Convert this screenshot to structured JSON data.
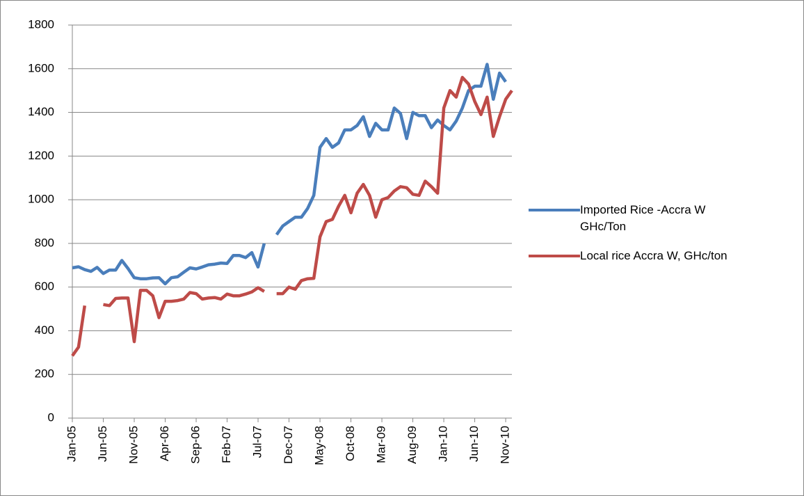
{
  "chart_data": {
    "type": "line",
    "categories": [
      "Jan-05",
      null,
      null,
      null,
      null,
      "Jun-05",
      null,
      null,
      null,
      null,
      "Nov-05",
      null,
      null,
      null,
      null,
      "Apr-06",
      null,
      null,
      null,
      null,
      "Sep-06",
      null,
      null,
      null,
      null,
      "Feb-07",
      null,
      null,
      null,
      null,
      "Jul-07",
      null,
      null,
      null,
      null,
      "Dec-07",
      null,
      null,
      null,
      null,
      "May-08",
      null,
      null,
      null,
      null,
      "Oct-08",
      null,
      null,
      null,
      null,
      "Mar-09",
      null,
      null,
      null,
      null,
      "Aug-09",
      null,
      null,
      null,
      null,
      "Jan-10",
      null,
      null,
      null,
      null,
      "Jun-10",
      null,
      null,
      null,
      null,
      "Nov-10",
      null
    ],
    "series": [
      {
        "name": "Imported Rice -Accra W GHc/Ton",
        "color": "#4a7ebb",
        "values": [
          688,
          693,
          680,
          672,
          690,
          662,
          678,
          678,
          722,
          685,
          643,
          638,
          638,
          642,
          643,
          615,
          643,
          647,
          668,
          688,
          683,
          692,
          702,
          705,
          710,
          708,
          745,
          745,
          735,
          758,
          692,
          800,
          null,
          840,
          880,
          900,
          920,
          920,
          960,
          1020,
          1240,
          1280,
          1240,
          1260,
          1320,
          1320,
          1340,
          1380,
          1290,
          1350,
          1320,
          1320,
          1420,
          1395,
          1280,
          1400,
          1385,
          1385,
          1330,
          1365,
          1340,
          1320,
          1360,
          1420,
          1500,
          1520,
          1520,
          1620,
          1460,
          1580,
          1540,
          null
        ]
      },
      {
        "name": "Local rice Accra W, GHc/ton",
        "color": "#be4b48",
        "values": [
          285,
          325,
          515,
          null,
          null,
          520,
          515,
          548,
          550,
          550,
          350,
          585,
          585,
          560,
          460,
          535,
          535,
          538,
          545,
          575,
          570,
          545,
          550,
          552,
          545,
          568,
          560,
          560,
          568,
          578,
          597,
          580,
          null,
          570,
          570,
          600,
          590,
          630,
          638,
          640,
          830,
          900,
          910,
          970,
          1020,
          940,
          1030,
          1070,
          1020,
          920,
          1000,
          1010,
          1040,
          1060,
          1055,
          1025,
          1020,
          1085,
          1060,
          1030,
          1420,
          1500,
          1470,
          1560,
          1530,
          1450,
          1390,
          1470,
          1290,
          1380,
          1460,
          1500
        ]
      }
    ],
    "ylim": [
      0,
      1800
    ],
    "yticks": [
      0,
      200,
      400,
      600,
      800,
      1000,
      1200,
      1400,
      1600,
      1800
    ],
    "grid": true,
    "legend": "right"
  }
}
